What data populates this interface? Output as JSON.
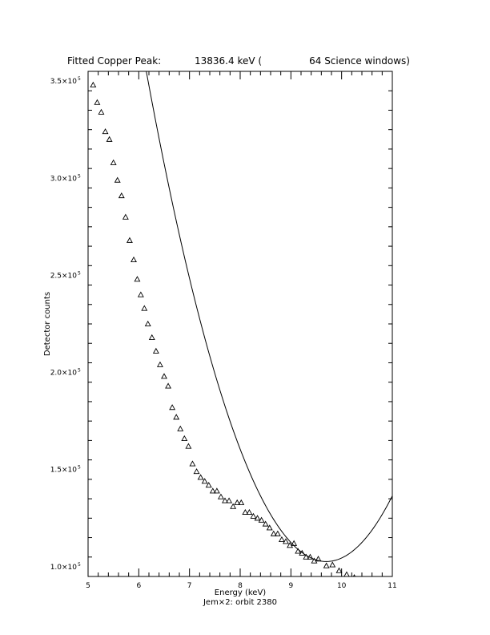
{
  "chart_data": {
    "type": "scatter",
    "title": {
      "prefix": "Fitted Copper Peak:",
      "value": "13836.4 keV (",
      "windows": "64 Science windows)"
    },
    "xlabel": "Energy (keV)",
    "ylabel": "Detector counts",
    "footer": "Jem×2: orbit 2380",
    "xlim": [
      5,
      11
    ],
    "ylim": [
      95000,
      355000
    ],
    "x_ticks": [
      {
        "value": 5,
        "label": "5"
      },
      {
        "value": 6,
        "label": "6"
      },
      {
        "value": 7,
        "label": "7"
      },
      {
        "value": 8,
        "label": "8"
      },
      {
        "value": 9,
        "label": "9"
      },
      {
        "value": 10,
        "label": "10"
      },
      {
        "value": 11,
        "label": "11"
      }
    ],
    "y_ticks": [
      {
        "value": 100000,
        "mantissa": "1.0×10",
        "exp": "5"
      },
      {
        "value": 150000,
        "mantissa": "1.5×10",
        "exp": "5"
      },
      {
        "value": 200000,
        "mantissa": "2.0×10",
        "exp": "5"
      },
      {
        "value": 250000,
        "mantissa": "2.5×10",
        "exp": "5"
      },
      {
        "value": 300000,
        "mantissa": "3.0×10",
        "exp": "5"
      },
      {
        "value": 350000,
        "mantissa": "3.5×10",
        "exp": "5"
      }
    ],
    "series": [
      {
        "marker": "triangle",
        "points": [
          [
            5.1,
            348000
          ],
          [
            5.18,
            339000
          ],
          [
            5.26,
            334000
          ],
          [
            5.34,
            324000
          ],
          [
            5.42,
            320000
          ],
          [
            5.5,
            308000
          ],
          [
            5.58,
            299000
          ],
          [
            5.66,
            291000
          ],
          [
            5.74,
            280000
          ],
          [
            5.82,
            268000
          ],
          [
            5.9,
            258000
          ],
          [
            5.97,
            248000
          ],
          [
            6.04,
            240000
          ],
          [
            6.11,
            233000
          ],
          [
            6.18,
            225000
          ],
          [
            6.26,
            218000
          ],
          [
            6.34,
            211000
          ],
          [
            6.42,
            204000
          ],
          [
            6.5,
            198000
          ],
          [
            6.58,
            193000
          ],
          [
            6.66,
            182000
          ],
          [
            6.74,
            177000
          ],
          [
            6.82,
            171000
          ],
          [
            6.9,
            166000
          ],
          [
            6.98,
            162000
          ],
          [
            7.06,
            153000
          ],
          [
            7.14,
            149000
          ],
          [
            7.22,
            146000
          ],
          [
            7.3,
            144000
          ],
          [
            7.38,
            142000
          ],
          [
            7.46,
            139000
          ],
          [
            7.54,
            139000
          ],
          [
            7.62,
            136000
          ],
          [
            7.7,
            134000
          ],
          [
            7.78,
            134000
          ],
          [
            7.86,
            131000
          ],
          [
            7.94,
            133000
          ],
          [
            8.02,
            133000
          ],
          [
            8.1,
            128000
          ],
          [
            8.18,
            128000
          ],
          [
            8.26,
            126000
          ],
          [
            8.34,
            125000
          ],
          [
            8.42,
            124000
          ],
          [
            8.5,
            122000
          ],
          [
            8.58,
            120000
          ],
          [
            8.66,
            117000
          ],
          [
            8.74,
            117000
          ],
          [
            8.82,
            114000
          ],
          [
            8.9,
            113000
          ],
          [
            8.98,
            111000
          ],
          [
            9.06,
            112000
          ],
          [
            9.14,
            108000
          ],
          [
            9.22,
            107000
          ],
          [
            9.3,
            105000
          ],
          [
            9.38,
            105000
          ],
          [
            9.46,
            103000
          ],
          [
            9.54,
            104000
          ],
          [
            9.7,
            100500
          ],
          [
            9.82,
            101000
          ],
          [
            9.95,
            98000
          ],
          [
            10.1,
            96000
          ],
          [
            10.25,
            94500
          ],
          [
            10.4,
            93500
          ],
          [
            10.55,
            93000
          ],
          [
            10.7,
            92500
          ]
        ]
      },
      {
        "marker": "line",
        "fit": {
          "a": 20000,
          "b": -388000,
          "c": 1984500
        },
        "x_range": [
          5.58,
          11
        ]
      }
    ],
    "grid": false,
    "legend": "none"
  }
}
